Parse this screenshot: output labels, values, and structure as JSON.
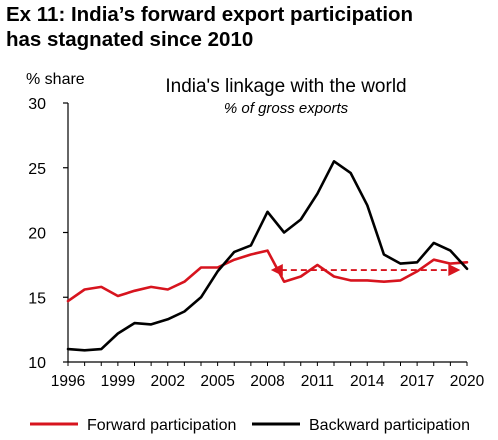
{
  "exhibit_title": {
    "line1": "Ex 11: India’s forward export participation",
    "line2": "has stagnated since 2010"
  },
  "chart_data": {
    "type": "line",
    "title": "India's linkage with the world",
    "subtitle": "% of gross exports",
    "ylabel": "% share",
    "xlabel": "",
    "xlim": [
      1996,
      2020
    ],
    "ylim": [
      10,
      30
    ],
    "yticks": [
      "10",
      "15",
      "20",
      "25",
      "30"
    ],
    "xticks": [
      "1996",
      "1999",
      "2002",
      "2005",
      "2008",
      "2011",
      "2014",
      "2017",
      "2020"
    ],
    "x": [
      1996,
      1997,
      1998,
      1999,
      2000,
      2001,
      2002,
      2003,
      2004,
      2005,
      2006,
      2007,
      2008,
      2009,
      2010,
      2011,
      2012,
      2013,
      2014,
      2015,
      2016,
      2017,
      2018,
      2019,
      2020
    ],
    "grid": false,
    "legend_position": "bottom",
    "series": [
      {
        "name": "Forward participation",
        "color": "#d7141e",
        "values": [
          14.7,
          15.6,
          15.8,
          15.1,
          15.5,
          15.8,
          15.6,
          16.2,
          17.3,
          17.3,
          17.9,
          18.3,
          18.6,
          16.2,
          16.6,
          17.5,
          16.6,
          16.3,
          16.3,
          16.2,
          16.3,
          17.0,
          17.9,
          17.6,
          17.7
        ]
      },
      {
        "name": "Backward participation",
        "color": "#000000",
        "values": [
          11.0,
          10.9,
          11.0,
          12.2,
          13.0,
          12.9,
          13.3,
          13.9,
          15.0,
          17.0,
          18.5,
          19.0,
          21.6,
          20.0,
          21.0,
          23.0,
          25.5,
          24.6,
          22.1,
          18.3,
          17.6,
          17.7,
          19.2,
          18.6,
          17.2
        ]
      }
    ],
    "annotation": {
      "type": "double-arrow",
      "style": "dashed",
      "color": "#d7141e",
      "x_from": 2008.2,
      "x_to": 2019.6,
      "y": 17.1
    }
  }
}
